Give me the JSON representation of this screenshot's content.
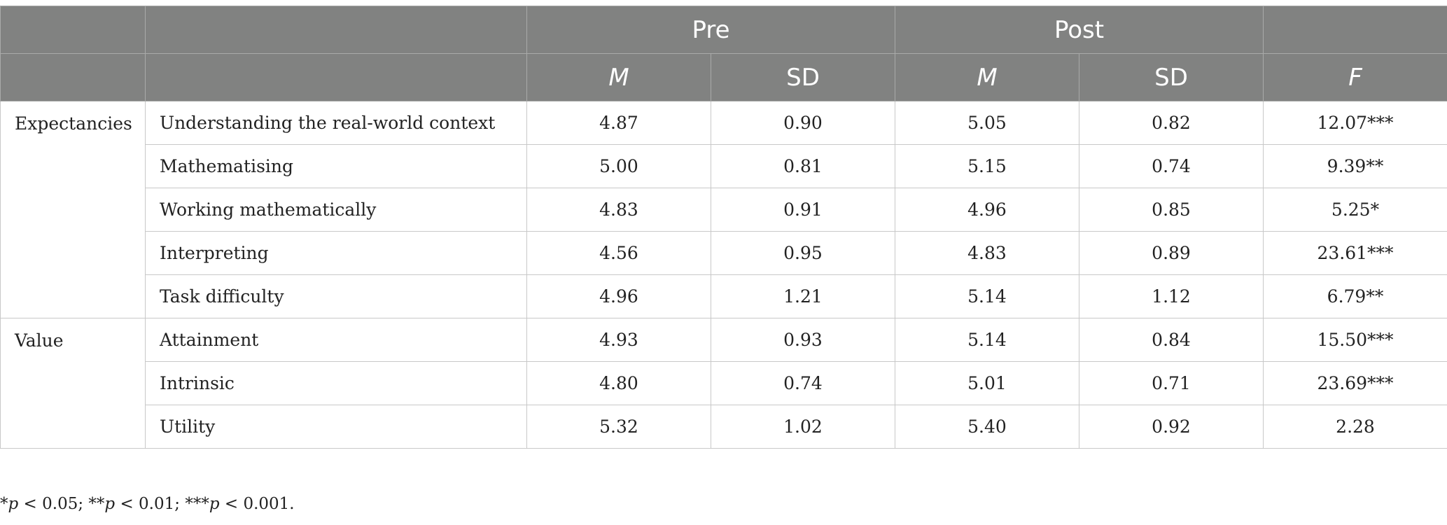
{
  "header": {
    "groups": [
      "",
      "",
      "Pre",
      "Post",
      ""
    ],
    "columns": [
      "",
      "",
      "M",
      "SD",
      "M",
      "SD",
      "F"
    ]
  },
  "rows": [
    {
      "category": "Expectancies",
      "item": "Understanding the real-world context",
      "pre_m": "4.87",
      "pre_sd": "0.90",
      "post_m": "5.05",
      "post_sd": "0.82",
      "f": "12.07***"
    },
    {
      "category": "",
      "item": "Mathematising",
      "pre_m": "5.00",
      "pre_sd": "0.81",
      "post_m": "5.15",
      "post_sd": "0.74",
      "f": "9.39**"
    },
    {
      "category": "",
      "item": "Working mathematically",
      "pre_m": "4.83",
      "pre_sd": "0.91",
      "post_m": "4.96",
      "post_sd": "0.85",
      "f": "5.25*"
    },
    {
      "category": "",
      "item": "Interpreting",
      "pre_m": "4.56",
      "pre_sd": "0.95",
      "post_m": "4.83",
      "post_sd": "0.89",
      "f": "23.61***"
    },
    {
      "category": "",
      "item": "Task difficulty",
      "pre_m": "4.96",
      "pre_sd": "1.21",
      "post_m": "5.14",
      "post_sd": "1.12",
      "f": "6.79**"
    },
    {
      "category": "Value",
      "item": "Attainment",
      "pre_m": "4.93",
      "pre_sd": "0.93",
      "post_m": "5.14",
      "post_sd": "0.84",
      "f": "15.50***"
    },
    {
      "category": "",
      "item": "Intrinsic",
      "pre_m": "4.80",
      "pre_sd": "0.74",
      "post_m": "5.01",
      "post_sd": "0.71",
      "f": "23.69***"
    },
    {
      "category": "",
      "item": "Utility",
      "pre_m": "5.32",
      "pre_sd": "1.02",
      "post_m": "5.40",
      "post_sd": "0.92",
      "f": "2.28"
    }
  ],
  "footnote": {
    "star1": "*",
    "p1": "p",
    "t1": " < 0.05; ",
    "star2": "**",
    "p2": "p",
    "t2": " < 0.01; ",
    "star3": "***",
    "p3": "p",
    "t3": " < 0.001."
  }
}
